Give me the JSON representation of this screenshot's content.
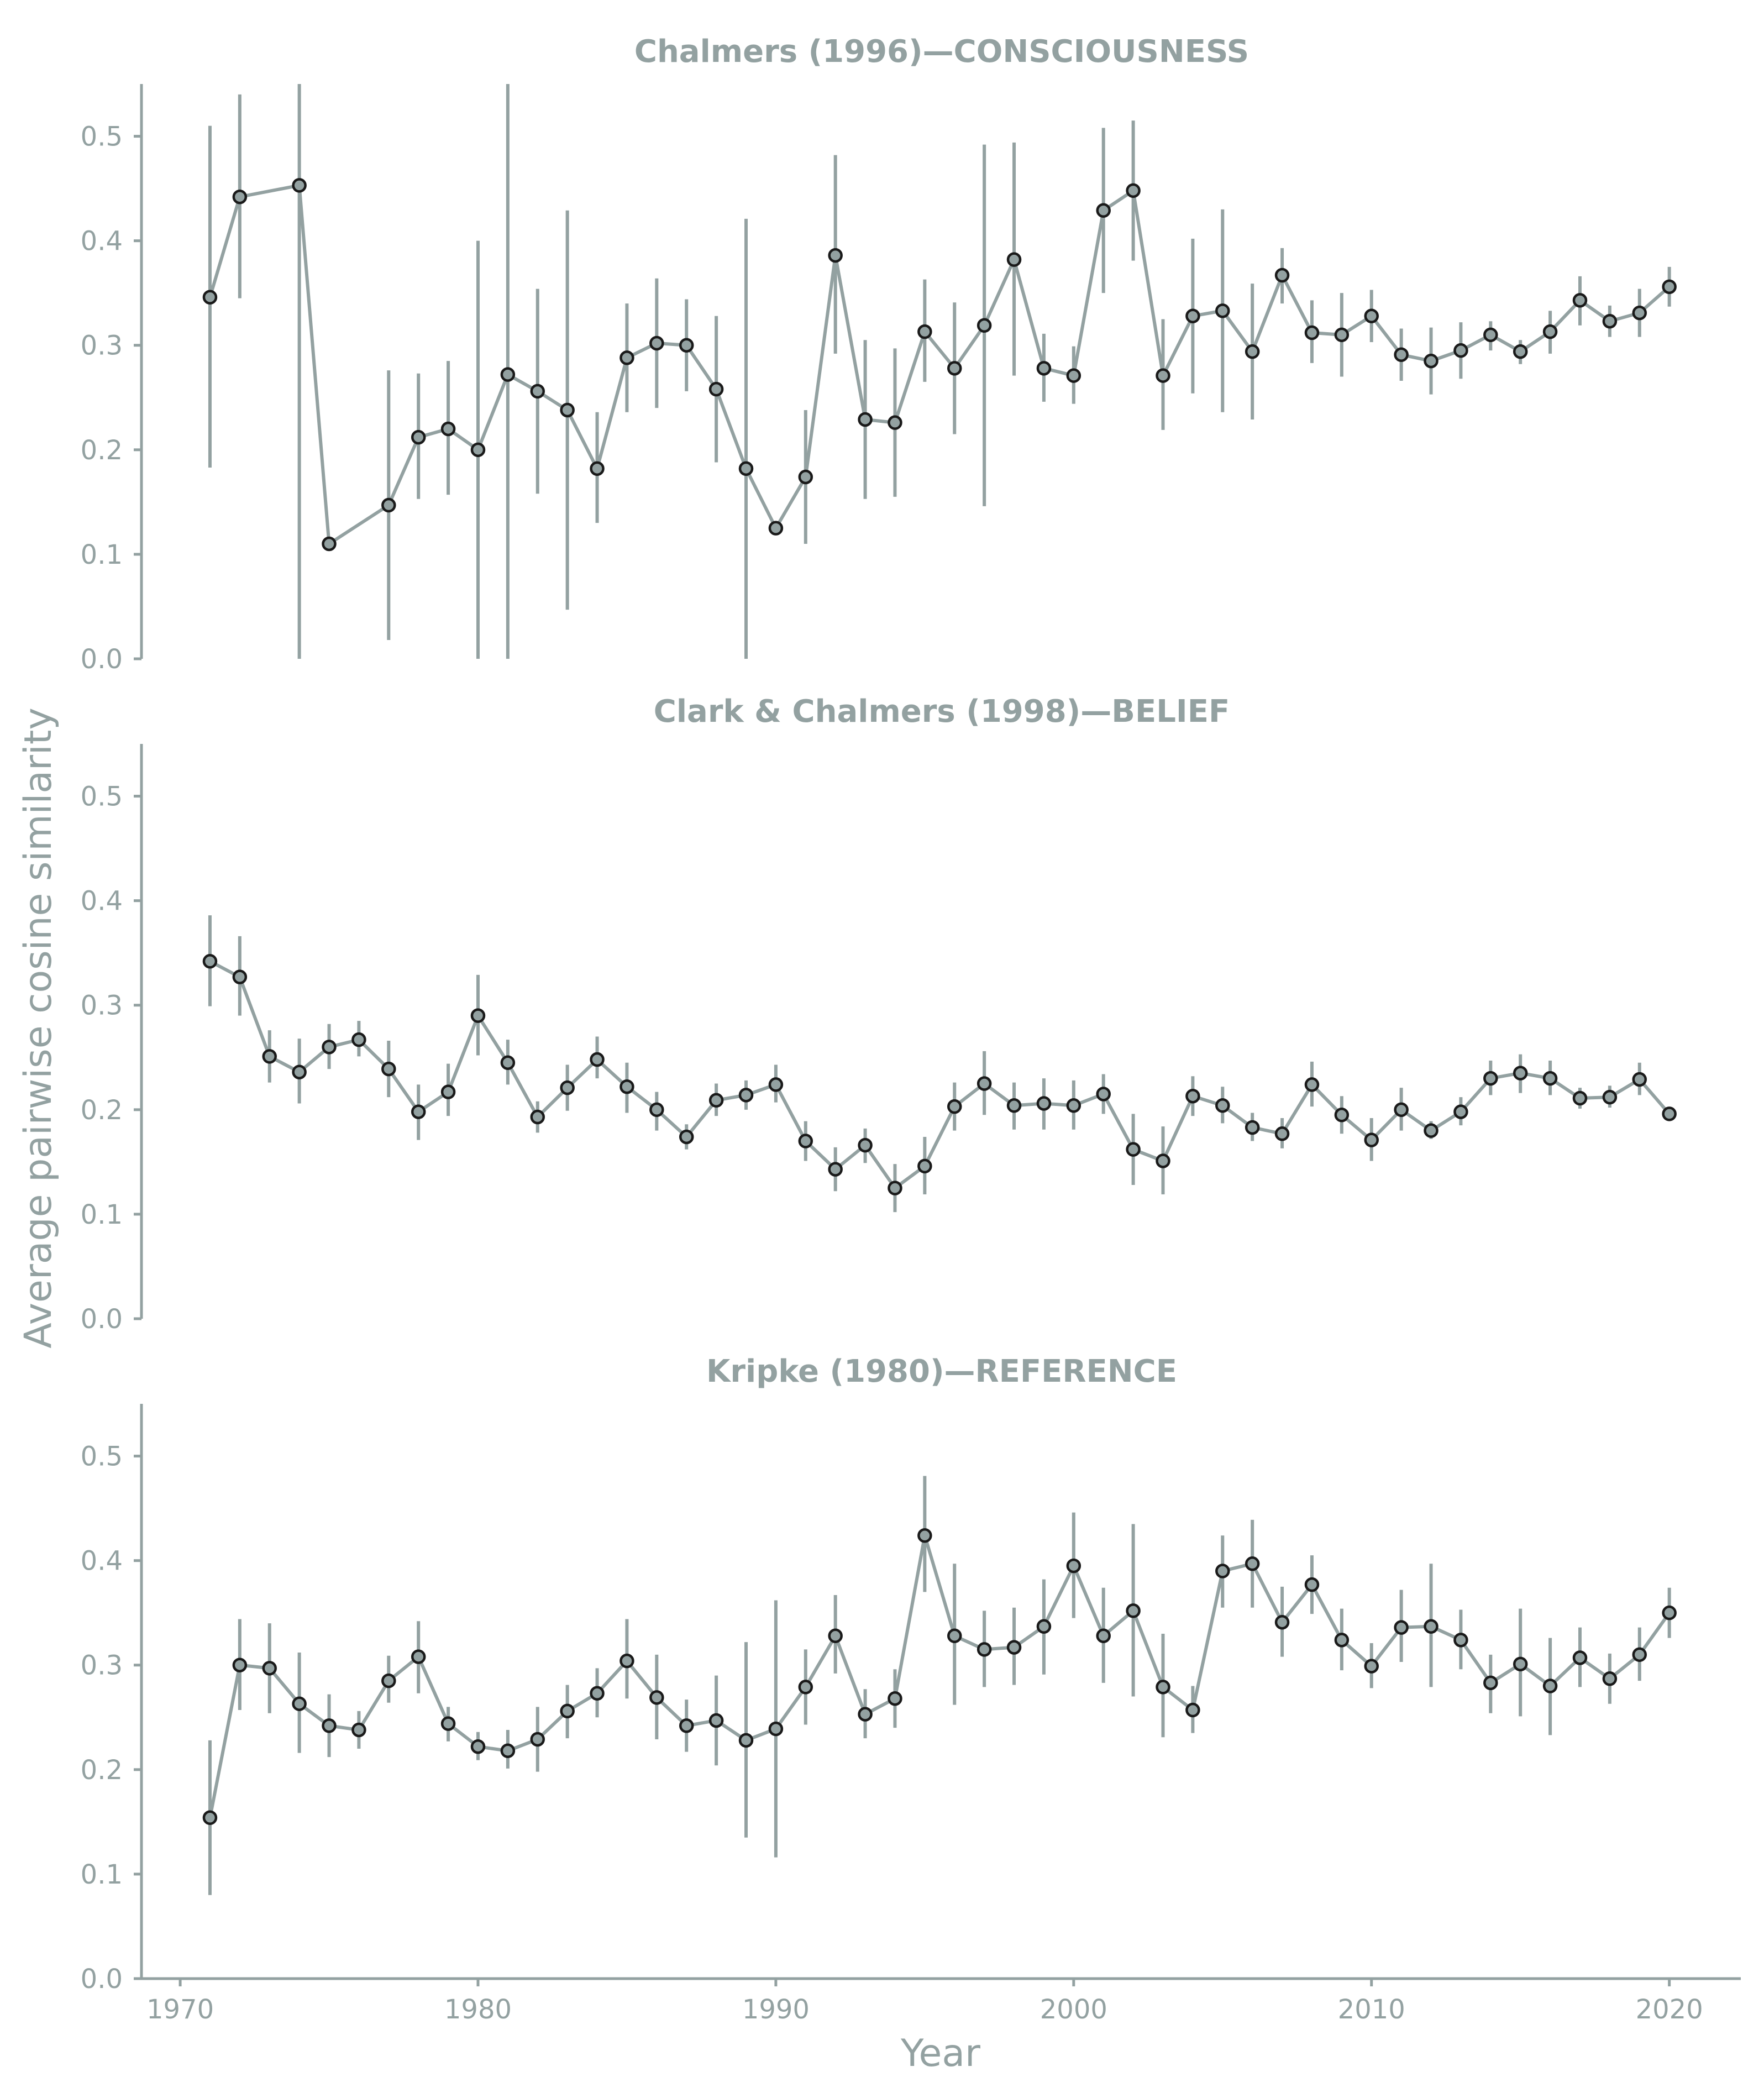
{
  "colors": {
    "series": "#93A1A1",
    "marker_edge": "#1a1a1a",
    "background": "#ffffff"
  },
  "chart_data": {
    "type": "line",
    "shared_xlabel": "Year",
    "shared_ylabel": "Average pairwise cosine similarity",
    "xlim": [
      1968.7,
      2022.4
    ],
    "xticks": [
      1970,
      1980,
      1990,
      2000,
      2010,
      2020
    ],
    "ylim": [
      0,
      0.55
    ],
    "yticks": [
      0.0,
      0.1,
      0.2,
      0.3,
      0.4,
      0.5
    ],
    "panels": [
      {
        "title": "Chalmers (1996)—CONSCIOUSNESS",
        "x": [
          1971,
          1972,
          1974,
          1975,
          1977,
          1978,
          1979,
          1980,
          1981,
          1982,
          1983,
          1984,
          1985,
          1986,
          1987,
          1988,
          1989,
          1990,
          1991,
          1992,
          1993,
          1994,
          1995,
          1996,
          1997,
          1998,
          1999,
          2000,
          2001,
          2002,
          2003,
          2004,
          2005,
          2006,
          2007,
          2008,
          2009,
          2010,
          2011,
          2012,
          2013,
          2014,
          2015,
          2016,
          2017,
          2018,
          2019,
          2020
        ],
        "y": [
          0.346,
          0.442,
          0.453,
          0.11,
          0.147,
          0.212,
          0.22,
          0.2,
          0.272,
          0.256,
          0.238,
          0.182,
          0.288,
          0.302,
          0.3,
          0.258,
          0.182,
          0.125,
          0.174,
          0.386,
          0.229,
          0.226,
          0.313,
          0.278,
          0.319,
          0.382,
          0.278,
          0.271,
          0.429,
          0.448,
          0.271,
          0.328,
          0.333,
          0.294,
          0.367,
          0.312,
          0.31,
          0.328,
          0.291,
          0.285,
          0.295,
          0.31,
          0.294,
          0.313,
          0.343,
          0.323,
          0.331,
          0.356
        ],
        "err_low": [
          0.183,
          0.345,
          0.0,
          0.11,
          0.018,
          0.153,
          0.157,
          0.0,
          0.0,
          0.158,
          0.047,
          0.13,
          0.236,
          0.24,
          0.256,
          0.188,
          0.0,
          0.125,
          0.11,
          0.292,
          0.153,
          0.155,
          0.265,
          0.215,
          0.146,
          0.271,
          0.246,
          0.244,
          0.35,
          0.381,
          0.219,
          0.254,
          0.236,
          0.229,
          0.34,
          0.283,
          0.27,
          0.303,
          0.266,
          0.253,
          0.268,
          0.295,
          0.282,
          0.292,
          0.319,
          0.308,
          0.308,
          0.337
        ],
        "err_high": [
          0.51,
          0.54,
          0.56,
          0.11,
          0.276,
          0.273,
          0.285,
          0.4,
          0.56,
          0.354,
          0.429,
          0.236,
          0.34,
          0.364,
          0.344,
          0.328,
          0.421,
          0.125,
          0.238,
          0.482,
          0.305,
          0.297,
          0.363,
          0.341,
          0.492,
          0.494,
          0.311,
          0.299,
          0.508,
          0.515,
          0.325,
          0.402,
          0.43,
          0.359,
          0.393,
          0.343,
          0.35,
          0.353,
          0.316,
          0.317,
          0.322,
          0.323,
          0.305,
          0.333,
          0.366,
          0.338,
          0.354,
          0.375
        ]
      },
      {
        "title": "Clark & Chalmers (1998)—BELIEF",
        "x": [
          1971,
          1972,
          1973,
          1974,
          1975,
          1976,
          1977,
          1978,
          1979,
          1980,
          1981,
          1982,
          1983,
          1984,
          1985,
          1986,
          1987,
          1988,
          1989,
          1990,
          1991,
          1992,
          1993,
          1994,
          1995,
          1996,
          1997,
          1998,
          1999,
          2000,
          2001,
          2002,
          2003,
          2004,
          2005,
          2006,
          2007,
          2008,
          2009,
          2010,
          2011,
          2012,
          2013,
          2014,
          2015,
          2016,
          2017,
          2018,
          2019,
          2020
        ],
        "y": [
          0.342,
          0.327,
          0.251,
          0.236,
          0.26,
          0.267,
          0.239,
          0.198,
          0.217,
          0.29,
          0.245,
          0.193,
          0.221,
          0.248,
          0.222,
          0.2,
          0.174,
          0.209,
          0.214,
          0.224,
          0.17,
          0.143,
          0.166,
          0.125,
          0.146,
          0.203,
          0.225,
          0.204,
          0.206,
          0.204,
          0.215,
          0.162,
          0.151,
          0.213,
          0.204,
          0.183,
          0.177,
          0.224,
          0.195,
          0.171,
          0.2,
          0.18,
          0.198,
          0.23,
          0.235,
          0.23,
          0.211,
          0.212,
          0.229,
          0.196
        ],
        "err_low": [
          0.299,
          0.29,
          0.226,
          0.206,
          0.239,
          0.251,
          0.212,
          0.171,
          0.194,
          0.252,
          0.224,
          0.178,
          0.199,
          0.23,
          0.197,
          0.18,
          0.162,
          0.194,
          0.2,
          0.207,
          0.151,
          0.122,
          0.149,
          0.102,
          0.119,
          0.18,
          0.195,
          0.181,
          0.181,
          0.181,
          0.196,
          0.128,
          0.119,
          0.194,
          0.187,
          0.17,
          0.163,
          0.203,
          0.177,
          0.151,
          0.18,
          0.172,
          0.185,
          0.214,
          0.216,
          0.214,
          0.201,
          0.202,
          0.214,
          0.196
        ],
        "err_high": [
          0.386,
          0.366,
          0.276,
          0.268,
          0.282,
          0.285,
          0.266,
          0.224,
          0.244,
          0.329,
          0.267,
          0.208,
          0.243,
          0.27,
          0.245,
          0.217,
          0.186,
          0.225,
          0.228,
          0.243,
          0.189,
          0.164,
          0.182,
          0.148,
          0.174,
          0.226,
          0.256,
          0.226,
          0.23,
          0.228,
          0.234,
          0.196,
          0.184,
          0.232,
          0.222,
          0.197,
          0.192,
          0.246,
          0.213,
          0.192,
          0.221,
          0.189,
          0.212,
          0.247,
          0.253,
          0.247,
          0.221,
          0.223,
          0.245,
          0.196
        ]
      },
      {
        "title": "Kripke (1980)—REFERENCE",
        "x": [
          1971,
          1972,
          1973,
          1974,
          1975,
          1976,
          1977,
          1978,
          1979,
          1980,
          1981,
          1982,
          1983,
          1984,
          1985,
          1986,
          1987,
          1988,
          1989,
          1990,
          1991,
          1992,
          1993,
          1994,
          1995,
          1996,
          1997,
          1998,
          1999,
          2000,
          2001,
          2002,
          2003,
          2004,
          2005,
          2006,
          2007,
          2008,
          2009,
          2010,
          2011,
          2012,
          2013,
          2014,
          2015,
          2016,
          2017,
          2018,
          2019,
          2020
        ],
        "y": [
          0.154,
          0.3,
          0.297,
          0.263,
          0.242,
          0.238,
          0.285,
          0.308,
          0.244,
          0.222,
          0.218,
          0.229,
          0.256,
          0.273,
          0.304,
          0.269,
          0.242,
          0.247,
          0.228,
          0.239,
          0.279,
          0.328,
          0.253,
          0.268,
          0.424,
          0.328,
          0.315,
          0.317,
          0.337,
          0.395,
          0.328,
          0.352,
          0.279,
          0.257,
          0.39,
          0.397,
          0.341,
          0.377,
          0.324,
          0.299,
          0.336,
          0.337,
          0.324,
          0.283,
          0.301,
          0.28,
          0.307,
          0.287,
          0.31,
          0.35
        ],
        "err_low": [
          0.08,
          0.257,
          0.254,
          0.216,
          0.212,
          0.22,
          0.264,
          0.273,
          0.227,
          0.209,
          0.201,
          0.198,
          0.23,
          0.25,
          0.268,
          0.229,
          0.217,
          0.204,
          0.135,
          0.116,
          0.243,
          0.292,
          0.23,
          0.24,
          0.37,
          0.262,
          0.279,
          0.281,
          0.291,
          0.345,
          0.283,
          0.27,
          0.231,
          0.235,
          0.355,
          0.355,
          0.308,
          0.349,
          0.295,
          0.278,
          0.303,
          0.279,
          0.296,
          0.254,
          0.251,
          0.233,
          0.279,
          0.263,
          0.285,
          0.326
        ],
        "err_high": [
          0.228,
          0.344,
          0.34,
          0.312,
          0.272,
          0.256,
          0.309,
          0.342,
          0.26,
          0.236,
          0.238,
          0.26,
          0.281,
          0.297,
          0.344,
          0.31,
          0.267,
          0.29,
          0.322,
          0.362,
          0.315,
          0.367,
          0.277,
          0.296,
          0.481,
          0.397,
          0.352,
          0.355,
          0.382,
          0.446,
          0.374,
          0.435,
          0.33,
          0.28,
          0.424,
          0.439,
          0.375,
          0.405,
          0.354,
          0.321,
          0.372,
          0.397,
          0.353,
          0.31,
          0.354,
          0.326,
          0.336,
          0.311,
          0.336,
          0.374
        ]
      }
    ]
  }
}
